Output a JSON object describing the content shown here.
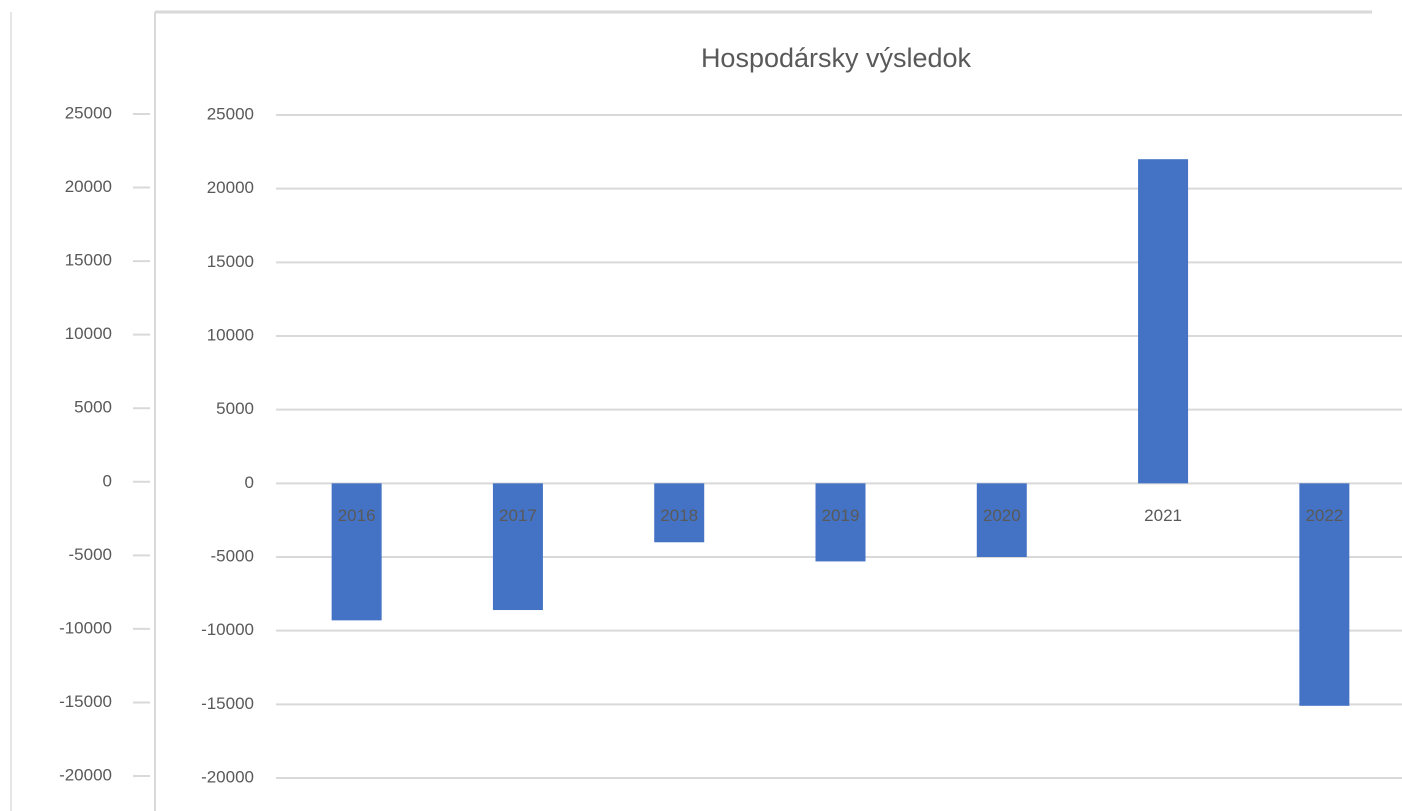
{
  "chart_data": [
    {
      "type": "axis",
      "ylim": [
        -20000,
        25000
      ],
      "yticks": [
        -20000,
        -15000,
        -10000,
        -5000,
        0,
        5000,
        10000,
        15000,
        20000,
        25000
      ]
    },
    {
      "type": "bar",
      "title": "Hospodársky výsledok",
      "categories": [
        "2016",
        "2017",
        "2018",
        "2019",
        "2020",
        "2021",
        "2022"
      ],
      "values": [
        -9300,
        -8600,
        -4000,
        -5300,
        -5000,
        22000,
        -15100
      ],
      "color": "#4472c4",
      "ylim": [
        -20000,
        25000
      ],
      "yticks": [
        -20000,
        -15000,
        -10000,
        -5000,
        0,
        5000,
        10000,
        15000,
        20000,
        25000
      ],
      "grid": true
    }
  ]
}
